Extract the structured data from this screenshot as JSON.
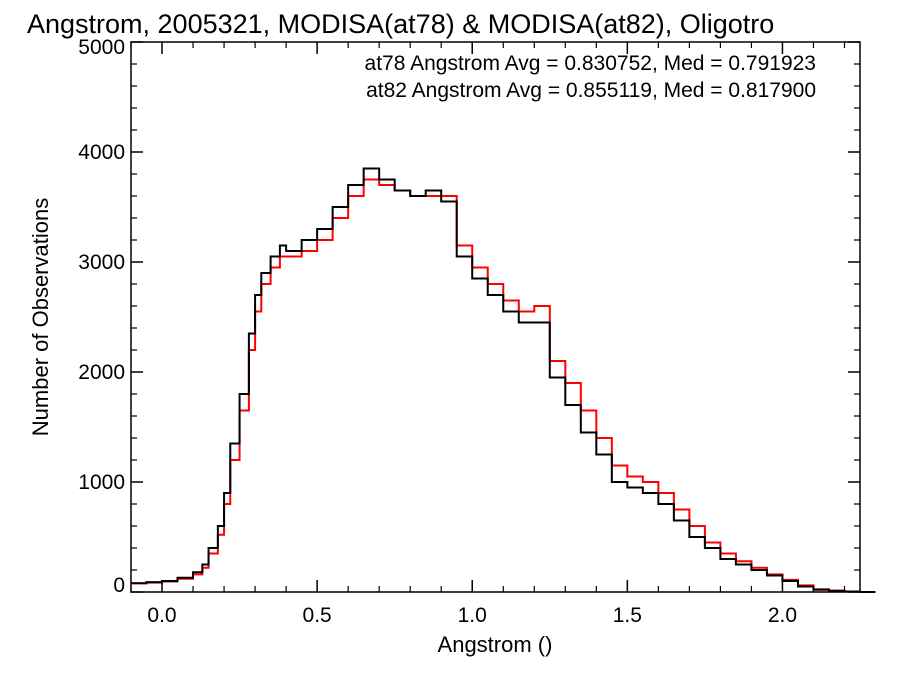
{
  "chart_data": {
    "type": "line",
    "title": "Angstrom, 2005321, MODISA(at78) & MODISA(at82), Oligotro",
    "xlabel": "Angstrom ()",
    "ylabel": "Number of Observations",
    "xlim": [
      -0.1,
      2.25
    ],
    "ylim": [
      0,
      5000
    ],
    "x_ticks": [
      0.0,
      0.5,
      1.0,
      1.5,
      2.0
    ],
    "x_tick_labels": [
      "0.0",
      "0.5",
      "1.0",
      "1.5",
      "2.0"
    ],
    "y_ticks": [
      0,
      1000,
      2000,
      3000,
      4000,
      5000
    ],
    "y_tick_labels": [
      "0",
      "1000",
      "2000",
      "3000",
      "4000",
      "5000"
    ],
    "grid": false,
    "legend_position": "top-right",
    "annotations": [
      {
        "text": "at78 Angstrom Avg = 0.830752, Med = 0.791923",
        "color": "#000000"
      },
      {
        "text": "at82 Angstrom Avg = 0.855119, Med = 0.817900",
        "color": "#ff0000"
      }
    ],
    "x": [
      -0.1,
      -0.05,
      0.0,
      0.05,
      0.1,
      0.13,
      0.15,
      0.18,
      0.2,
      0.22,
      0.25,
      0.28,
      0.3,
      0.32,
      0.35,
      0.38,
      0.4,
      0.45,
      0.5,
      0.55,
      0.6,
      0.65,
      0.7,
      0.75,
      0.8,
      0.85,
      0.9,
      0.95,
      1.0,
      1.05,
      1.1,
      1.15,
      1.2,
      1.25,
      1.3,
      1.35,
      1.4,
      1.45,
      1.5,
      1.55,
      1.6,
      1.65,
      1.7,
      1.75,
      1.8,
      1.85,
      1.9,
      1.95,
      2.0,
      2.05,
      2.1,
      2.15,
      2.2,
      2.25
    ],
    "series": [
      {
        "color": "#000000",
        "values": [
          80,
          90,
          100,
          130,
          180,
          250,
          400,
          600,
          900,
          1350,
          1800,
          2350,
          2700,
          2900,
          3050,
          3150,
          3100,
          3200,
          3300,
          3500,
          3700,
          3850,
          3750,
          3650,
          3600,
          3650,
          3550,
          3050,
          2850,
          2700,
          2550,
          2450,
          2450,
          1950,
          1700,
          1450,
          1250,
          1000,
          950,
          900,
          800,
          650,
          500,
          400,
          300,
          250,
          200,
          150,
          100,
          50,
          20,
          10,
          5,
          0
        ]
      },
      {
        "color": "#ff0000",
        "values": [
          80,
          85,
          95,
          120,
          160,
          220,
          350,
          520,
          800,
          1200,
          1650,
          2200,
          2550,
          2800,
          2950,
          3050,
          3050,
          3100,
          3200,
          3400,
          3600,
          3750,
          3700,
          3650,
          3600,
          3600,
          3600,
          3150,
          2950,
          2800,
          2650,
          2550,
          2600,
          2100,
          1900,
          1650,
          1400,
          1150,
          1050,
          1000,
          900,
          750,
          600,
          450,
          350,
          280,
          220,
          160,
          110,
          60,
          25,
          12,
          5,
          0
        ]
      }
    ]
  }
}
